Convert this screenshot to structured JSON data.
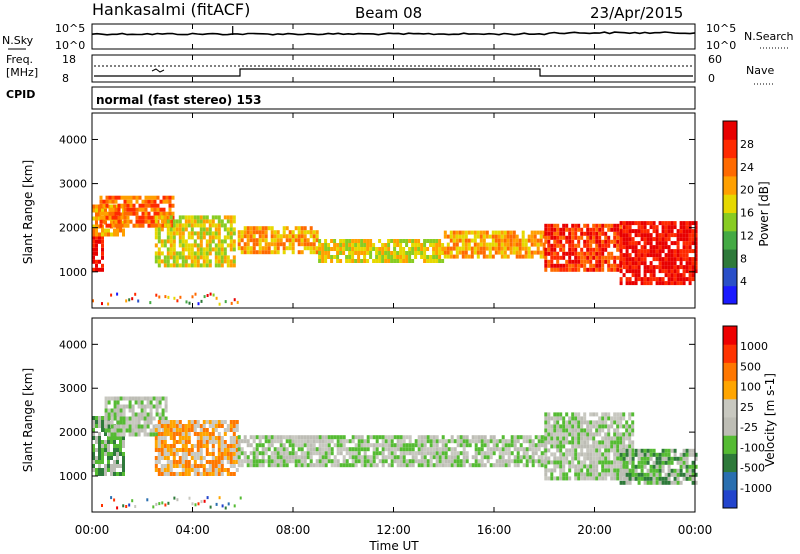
{
  "header": {
    "station": "Hankasalmi (fitACF)",
    "beam": "Beam 08",
    "date": "23/Apr/2015"
  },
  "noise_panel": {
    "left_label": "N.Sky",
    "right_label": "N.Search",
    "left_ticks": [
      "10^5",
      "10^0"
    ],
    "right_ticks": [
      "10^5",
      "10^0"
    ]
  },
  "freq_panel": {
    "left_label_1": "Freq.",
    "left_label_2": "[MHz]",
    "left_ticks": [
      "18",
      "8"
    ],
    "right_ticks": [
      "60",
      "0"
    ],
    "right_label": "Nave",
    "cpid_label": "CPID"
  },
  "cpid_panel": {
    "mode_text": "normal (fast stereo) 153"
  },
  "colors": {
    "power_scale": [
      "#1a1aff",
      "#2a4fc8",
      "#2e7a3a",
      "#44aa44",
      "#88cc22",
      "#e6d800",
      "#ffa000",
      "#ff6a00",
      "#ff2a00",
      "#e80000"
    ],
    "velocity_scale": [
      "#2244cc",
      "#2a6fb0",
      "#2e7a3a",
      "#55bb33",
      "#bdbdb5",
      "#c8c8c0",
      "#ffa500",
      "#ff7700",
      "#ff3300",
      "#ee0000"
    ]
  },
  "chart_data": [
    {
      "type": "heatmap",
      "name": "power",
      "ylabel": "Slant Range [km]",
      "ylim": [
        180,
        4600
      ],
      "yticks": [
        "4000",
        "3000",
        "2000",
        "1000"
      ],
      "xlim_hours": [
        0,
        24
      ],
      "colorbar_label": "Power [dB]",
      "colorbar_ticks": [
        "28",
        "24",
        "20",
        "16",
        "12",
        "8",
        "4"
      ],
      "bands": [
        {
          "t0": 0.0,
          "t1": 0.4,
          "r0": 1000,
          "r1": 1800,
          "level": 9
        },
        {
          "t0": 0.0,
          "t1": 1.2,
          "r0": 1800,
          "r1": 2500,
          "level": 6
        },
        {
          "t0": 0.3,
          "t1": 3.2,
          "r0": 2000,
          "r1": 2700,
          "level": 7
        },
        {
          "t0": 2.5,
          "t1": 5.7,
          "r0": 1100,
          "r1": 2200,
          "level": 5
        },
        {
          "t0": 5.8,
          "t1": 9.0,
          "r0": 1400,
          "r1": 2000,
          "level": 6
        },
        {
          "t0": 9.0,
          "t1": 14.0,
          "r0": 1200,
          "r1": 1700,
          "level": 5
        },
        {
          "t0": 14.0,
          "t1": 18.0,
          "r0": 1300,
          "r1": 1900,
          "level": 6
        },
        {
          "t0": 18.0,
          "t1": 21.0,
          "r0": 1000,
          "r1": 2000,
          "level": 8
        },
        {
          "t0": 21.0,
          "t1": 24.0,
          "r0": 700,
          "r1": 2100,
          "level": 9
        }
      ]
    },
    {
      "type": "heatmap",
      "name": "velocity",
      "ylabel": "Slant Range [km]",
      "ylim": [
        180,
        4600
      ],
      "yticks": [
        "4000",
        "3000",
        "2000",
        "1000"
      ],
      "xlim_hours": [
        0,
        24
      ],
      "xticks": [
        "00:00",
        "04:00",
        "08:00",
        "12:00",
        "16:00",
        "20:00",
        "00:00"
      ],
      "xlabel": "Time UT",
      "colorbar_label": "Velocity [m s-1]",
      "colorbar_ticks": [
        "1000",
        "500",
        "100",
        "25",
        "-25",
        "-100",
        "-500",
        "-1000"
      ],
      "bands": [
        {
          "t0": 0.0,
          "t1": 1.2,
          "r0": 1000,
          "r1": 2300,
          "level": 3
        },
        {
          "t0": 0.5,
          "t1": 3.0,
          "r0": 1900,
          "r1": 2800,
          "level": 4
        },
        {
          "t0": 2.5,
          "t1": 5.8,
          "r0": 1000,
          "r1": 2200,
          "level": 6
        },
        {
          "t0": 5.8,
          "t1": 18.0,
          "r0": 1200,
          "r1": 1900,
          "level": 4
        },
        {
          "t0": 18.0,
          "t1": 21.5,
          "r0": 900,
          "r1": 2400,
          "level": 4
        },
        {
          "t0": 21.0,
          "t1": 24.0,
          "r0": 800,
          "r1": 1600,
          "level": 3
        }
      ]
    }
  ]
}
